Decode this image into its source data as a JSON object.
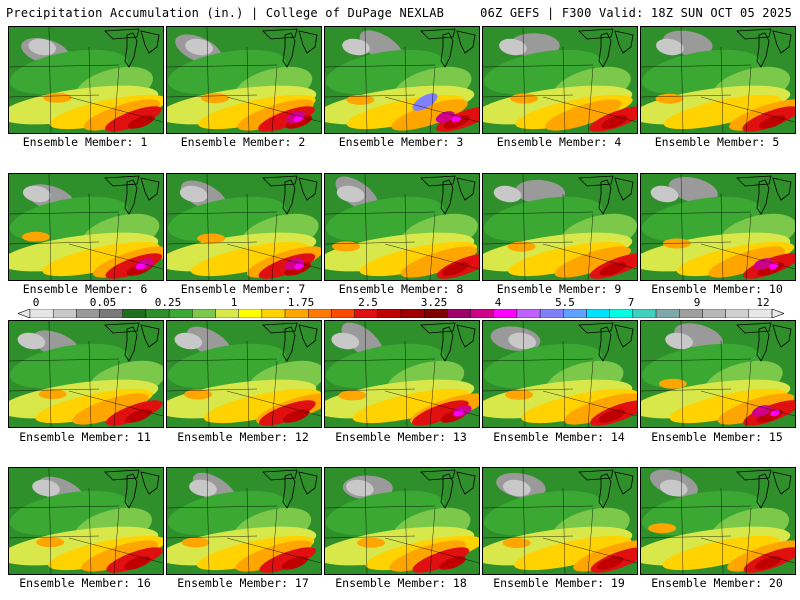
{
  "header": {
    "left": "Precipitation Accumulation (in.) | College of DuPage NEXLAB",
    "right": "06Z GEFS | F300 Valid: 18Z SUN OCT 05 2025"
  },
  "panels": [
    {
      "label": "Ensemble Member: 1"
    },
    {
      "label": "Ensemble Member: 2"
    },
    {
      "label": "Ensemble Member: 3"
    },
    {
      "label": "Ensemble Member: 4"
    },
    {
      "label": "Ensemble Member: 5"
    },
    {
      "label": "Ensemble Member: 6"
    },
    {
      "label": "Ensemble Member: 7"
    },
    {
      "label": "Ensemble Member: 8"
    },
    {
      "label": "Ensemble Member: 9"
    },
    {
      "label": "Ensemble Member: 10"
    },
    {
      "label": "Ensemble Member: 11"
    },
    {
      "label": "Ensemble Member: 12"
    },
    {
      "label": "Ensemble Member: 13"
    },
    {
      "label": "Ensemble Member: 14"
    },
    {
      "label": "Ensemble Member: 15"
    },
    {
      "label": "Ensemble Member: 16"
    },
    {
      "label": "Ensemble Member: 17"
    },
    {
      "label": "Ensemble Member: 18"
    },
    {
      "label": "Ensemble Member: 19"
    },
    {
      "label": "Ensemble Member: 20"
    }
  ],
  "colorbar": {
    "ticks": [
      "0",
      "0.05",
      "0.25",
      "1",
      "1.75",
      "2.5",
      "3.25",
      "4",
      "5.5",
      "7",
      "9",
      "12"
    ],
    "colors": [
      "#e6e6e6",
      "#c8c8c8",
      "#9a9a9a",
      "#7a7a7a",
      "#1e6e1e",
      "#2f8f2a",
      "#3aa832",
      "#7bc84a",
      "#d8e84a",
      "#ffff00",
      "#ffd200",
      "#ffa500",
      "#ff7a00",
      "#ff4a00",
      "#e01010",
      "#c00000",
      "#a00000",
      "#800000",
      "#a0006a",
      "#d0008a",
      "#ff00ff",
      "#c060ff",
      "#8080ff",
      "#60a0ff",
      "#00e0ff",
      "#00ffe0",
      "#40d0c0",
      "#80a8a8",
      "#a0a0a0",
      "#b8b8b8",
      "#d0d0d0",
      "#e8e8e8"
    ]
  }
}
